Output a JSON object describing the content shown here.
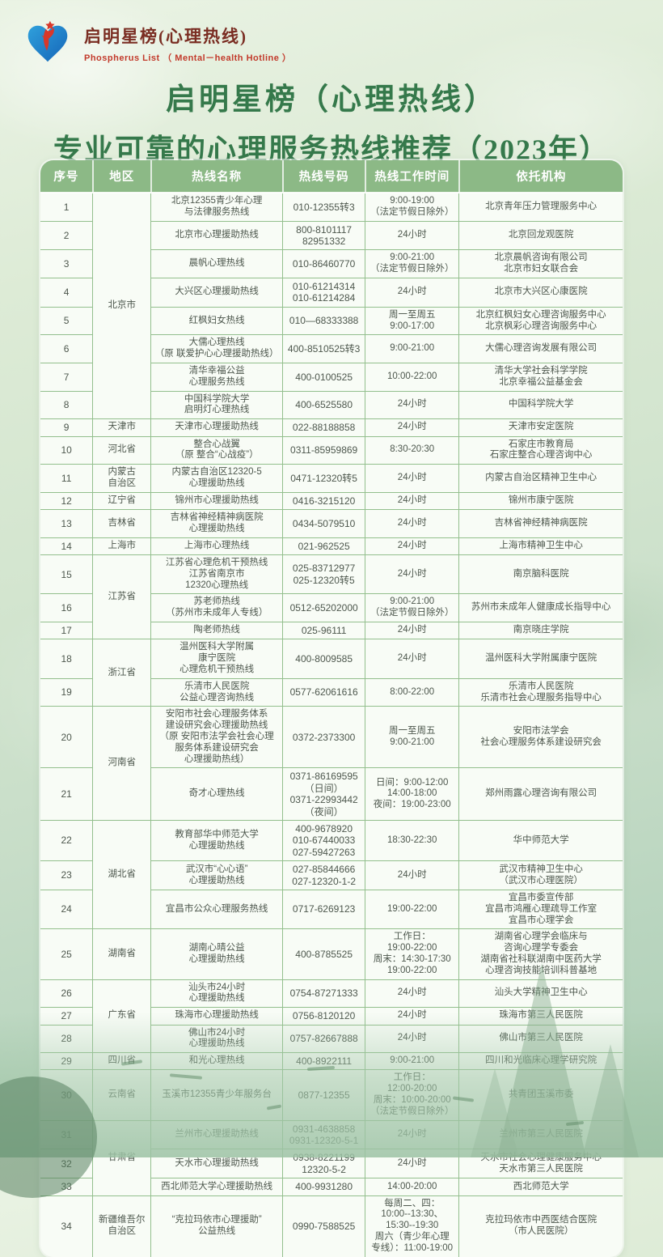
{
  "brand": {
    "logo_icon": "heart-star-figure-logo",
    "title": "启明星榜(心理热线)",
    "subtitle": "Phospherus List （ Mental－health Hotline ）"
  },
  "title": {
    "line1": "启明星榜（心理热线）",
    "line2": "专业可靠的心理服务热线推荐（2023年）"
  },
  "colors": {
    "header_green": "#8cb986",
    "border_green": "#93bf8d",
    "title_green": "#35794b",
    "brand_red": "#c23a2b",
    "cell_bg": "#f8fcf6"
  },
  "table": {
    "columns": [
      "序号",
      "地区",
      "热线名称",
      "热线号码",
      "热线工作时间",
      "依托机构"
    ],
    "rows": [
      {
        "no": "1",
        "region": {
          "lines": [
            "北京市"
          ],
          "span": 8
        },
        "name": [
          "北京12355青少年心理",
          "与法律服务热线"
        ],
        "phone": [
          "010-12355转3"
        ],
        "time": [
          "9:00-19:00",
          "（法定节假日除外）"
        ],
        "org": [
          "北京青年压力管理服务中心"
        ]
      },
      {
        "no": "2",
        "name": [
          "北京市心理援助热线"
        ],
        "phone": [
          "800-8101117",
          "82951332"
        ],
        "time": [
          "24小时"
        ],
        "org": [
          "北京回龙观医院"
        ]
      },
      {
        "no": "3",
        "name": [
          "晨帆心理热线"
        ],
        "phone": [
          "010-86460770"
        ],
        "time": [
          "9:00-21:00",
          "（法定节假日除外）"
        ],
        "org": [
          "北京晨帆咨询有限公司",
          "北京市妇女联合会"
        ]
      },
      {
        "no": "4",
        "name": [
          "大兴区心理援助热线"
        ],
        "phone": [
          "010-61214314",
          "010-61214284"
        ],
        "time": [
          "24小时"
        ],
        "org": [
          "北京市大兴区心康医院"
        ]
      },
      {
        "no": "5",
        "name": [
          "红枫妇女热线"
        ],
        "phone": [
          "010—68333388"
        ],
        "time": [
          "周一至周五",
          "9:00-17:00"
        ],
        "org": [
          "北京红枫妇女心理咨询服务中心",
          "北京枫彩心理咨询服务中心"
        ]
      },
      {
        "no": "6",
        "name": [
          "大儒心理热线",
          "（原 联爱护心心理援助热线）"
        ],
        "phone": [
          "400-8510525转3"
        ],
        "time": [
          "9:00-21:00"
        ],
        "org": [
          "大儒心理咨询发展有限公司"
        ]
      },
      {
        "no": "7",
        "name": [
          "清华幸福公益",
          "心理服务热线"
        ],
        "phone": [
          "400-0100525"
        ],
        "time": [
          "10:00-22:00"
        ],
        "org": [
          "清华大学社会科学学院",
          "北京幸福公益基金会"
        ]
      },
      {
        "no": "8",
        "name": [
          "中国科学院大学",
          "启明灯心理热线"
        ],
        "phone": [
          "400-6525580"
        ],
        "time": [
          "24小时"
        ],
        "org": [
          "中国科学院大学"
        ]
      },
      {
        "no": "9",
        "region": {
          "lines": [
            "天津市"
          ],
          "span": 1
        },
        "name": [
          "天津市心理援助热线"
        ],
        "phone": [
          "022-88188858"
        ],
        "time": [
          "24小时"
        ],
        "org": [
          "天津市安定医院"
        ]
      },
      {
        "no": "10",
        "region": {
          "lines": [
            "河北省"
          ],
          "span": 1
        },
        "name": [
          "整合心战翼",
          "（原 整合“心战疫”）"
        ],
        "phone": [
          "0311-85959869"
        ],
        "time": [
          "8:30-20:30"
        ],
        "org": [
          "石家庄市教育局",
          "石家庄整合心理咨询中心"
        ]
      },
      {
        "no": "11",
        "region": {
          "lines": [
            "内蒙古",
            "自治区"
          ],
          "span": 1
        },
        "name": [
          "内蒙古自治区12320-5",
          "心理援助热线"
        ],
        "phone": [
          "0471-12320转5"
        ],
        "time": [
          "24小时"
        ],
        "org": [
          "内蒙古自治区精神卫生中心"
        ]
      },
      {
        "no": "12",
        "region": {
          "lines": [
            "辽宁省"
          ],
          "span": 1
        },
        "name": [
          "锦州市心理援助热线"
        ],
        "phone": [
          "0416-3215120"
        ],
        "time": [
          "24小时"
        ],
        "org": [
          "锦州市康宁医院"
        ]
      },
      {
        "no": "13",
        "region": {
          "lines": [
            "吉林省"
          ],
          "span": 1
        },
        "name": [
          "吉林省神经精神病医院",
          "心理援助热线"
        ],
        "phone": [
          "0434-5079510"
        ],
        "time": [
          "24小时"
        ],
        "org": [
          "吉林省神经精神病医院"
        ]
      },
      {
        "no": "14",
        "region": {
          "lines": [
            "上海市"
          ],
          "span": 1
        },
        "name": [
          "上海市心理热线"
        ],
        "phone": [
          "021-962525"
        ],
        "time": [
          "24小时"
        ],
        "org": [
          "上海市精神卫生中心"
        ]
      },
      {
        "no": "15",
        "region": {
          "lines": [
            "江苏省"
          ],
          "span": 3
        },
        "name": [
          "江苏省心理危机干预热线",
          "江苏省南京市",
          "12320心理热线"
        ],
        "phone": [
          "025-83712977",
          "025-12320转5"
        ],
        "time": [
          "24小时"
        ],
        "org": [
          "南京脑科医院"
        ]
      },
      {
        "no": "16",
        "name": [
          "苏老师热线",
          "（苏州市未成年人专线）"
        ],
        "phone": [
          "0512-65202000"
        ],
        "time": [
          "9:00-21:00",
          "（法定节假日除外）"
        ],
        "org": [
          "苏州市未成年人健康成长指导中心"
        ]
      },
      {
        "no": "17",
        "name": [
          "陶老师热线"
        ],
        "phone": [
          "025-96111"
        ],
        "time": [
          "24小时"
        ],
        "org": [
          "南京晓庄学院"
        ]
      },
      {
        "no": "18",
        "region": {
          "lines": [
            "浙江省"
          ],
          "span": 2
        },
        "name": [
          "温州医科大学附属",
          "康宁医院",
          "心理危机干预热线"
        ],
        "phone": [
          "400-8009585"
        ],
        "time": [
          "24小时"
        ],
        "org": [
          "温州医科大学附属康宁医院"
        ]
      },
      {
        "no": "19",
        "name": [
          "乐清市人民医院",
          "公益心理咨询热线"
        ],
        "phone": [
          "0577-62061616"
        ],
        "time": [
          "8:00-22:00"
        ],
        "org": [
          "乐清市人民医院",
          "乐清市社会心理服务指导中心"
        ]
      },
      {
        "no": "20",
        "region": {
          "lines": [
            "河南省"
          ],
          "span": 2
        },
        "name": [
          "安阳市社会心理服务体系",
          "建设研究会心理援助热线",
          "（原 安阳市法学会社会心理",
          "服务体系建设研究会",
          "心理援助热线）"
        ],
        "phone": [
          "0372-2373300"
        ],
        "time": [
          "周一至周五",
          "9:00-21:00"
        ],
        "org": [
          "安阳市法学会",
          "社会心理服务体系建设研究会"
        ]
      },
      {
        "no": "21",
        "name": [
          "奇才心理热线"
        ],
        "phone": [
          "0371-86169595",
          "（日间）",
          "0371-22993442",
          "（夜间）"
        ],
        "time": [
          "日间：9:00-12:00",
          "14:00-18:00",
          "夜间：19:00-23:00"
        ],
        "org": [
          "郑州雨露心理咨询有限公司"
        ]
      },
      {
        "no": "22",
        "region": {
          "lines": [
            "湖北省"
          ],
          "span": 3
        },
        "name": [
          "教育部华中师范大学",
          "心理援助热线"
        ],
        "phone": [
          "400-9678920",
          "010-67440033",
          "027-59427263"
        ],
        "time": [
          "18:30-22:30"
        ],
        "org": [
          "华中师范大学"
        ]
      },
      {
        "no": "23",
        "name": [
          "武汉市“心心语”",
          "心理援助热线"
        ],
        "phone": [
          "027-85844666",
          "027-12320-1-2"
        ],
        "time": [
          "24小时"
        ],
        "org": [
          "武汉市精神卫生中心",
          "（武汉市心理医院）"
        ]
      },
      {
        "no": "24",
        "name": [
          "宜昌市公众心理服务热线"
        ],
        "phone": [
          "0717-6269123"
        ],
        "time": [
          "19:00-22:00"
        ],
        "org": [
          "宜昌市委宣传部",
          "宜昌市鸿雁心理疏导工作室",
          "宜昌市心理学会"
        ]
      },
      {
        "no": "25",
        "region": {
          "lines": [
            "湖南省"
          ],
          "span": 1
        },
        "name": [
          "湖南心晴公益",
          "心理援助热线"
        ],
        "phone": [
          "400-8785525"
        ],
        "time": [
          "工作日：",
          "19:00-22:00",
          "周末：14:30-17:30",
          "19:00-22:00"
        ],
        "org": [
          "湖南省心理学会临床与",
          "咨询心理学专委会",
          "湖南省社科联湖南中医药大学",
          "心理咨询技能培训科普基地"
        ]
      },
      {
        "no": "26",
        "region": {
          "lines": [
            "广东省"
          ],
          "span": 3
        },
        "name": [
          "汕头市24小时",
          "心理援助热线"
        ],
        "phone": [
          "0754-87271333"
        ],
        "time": [
          "24小时"
        ],
        "org": [
          "汕头大学精神卫生中心"
        ]
      },
      {
        "no": "27",
        "name": [
          "珠海市心理援助热线"
        ],
        "phone": [
          "0756-8120120"
        ],
        "time": [
          "24小时"
        ],
        "org": [
          "珠海市第三人民医院"
        ]
      },
      {
        "no": "28",
        "name": [
          "佛山市24小时",
          "心理援助热线"
        ],
        "phone": [
          "0757-82667888"
        ],
        "time": [
          "24小时"
        ],
        "org": [
          "佛山市第三人民医院"
        ]
      },
      {
        "no": "29",
        "region": {
          "lines": [
            "四川省"
          ],
          "span": 1
        },
        "name": [
          "和光心理热线"
        ],
        "phone": [
          "400-8922111"
        ],
        "time": [
          "9:00-21:00"
        ],
        "org": [
          "四川和光临床心理学研究院"
        ]
      },
      {
        "no": "30",
        "region": {
          "lines": [
            "云南省"
          ],
          "span": 1
        },
        "name": [
          "玉溪市12355青少年服务台"
        ],
        "phone": [
          "0877-12355"
        ],
        "time": [
          "工作日：",
          "12:00-20:00",
          "周末：10:00-20:00",
          "（法定节假日除外）"
        ],
        "org": [
          "共青团玉溪市委"
        ]
      },
      {
        "no": "31",
        "region": {
          "lines": [
            "甘肃省"
          ],
          "span": 3
        },
        "name": [
          "兰州市心理援助热线"
        ],
        "phone": [
          "0931-4638858",
          "0931-12320-5-1"
        ],
        "time": [
          "24小时"
        ],
        "org": [
          "兰州市第三人民医院"
        ]
      },
      {
        "no": "32",
        "name": [
          "天水市心理援助热线"
        ],
        "phone": [
          "0938-8221199",
          "12320-5-2"
        ],
        "time": [
          "24小时"
        ],
        "org": [
          "天水市社会心理健康服务中心",
          "天水市第三人民医院"
        ]
      },
      {
        "no": "33",
        "name": [
          "西北师范大学心理援助热线"
        ],
        "phone": [
          "400-9931280"
        ],
        "time": [
          "14:00-20:00"
        ],
        "org": [
          "西北师范大学"
        ]
      },
      {
        "no": "34",
        "region": {
          "lines": [
            "新疆维吾尔",
            "自治区"
          ],
          "span": 1
        },
        "name": [
          "“克拉玛依市心理援助”",
          "公益热线"
        ],
        "phone": [
          "0990-7588525"
        ],
        "time": [
          "每周二、四：",
          "10:00--13:30、",
          "15:30--19:30",
          "周六（青少年心理",
          "专线）：11:00-19:00"
        ],
        "org": [
          "克拉玛依市中西医结合医院",
          "（市人民医院）"
        ]
      }
    ]
  }
}
